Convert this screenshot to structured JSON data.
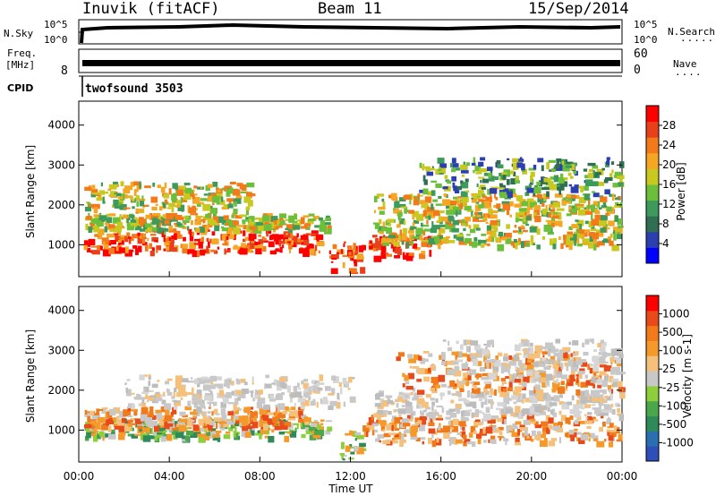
{
  "header": {
    "station": "Inuvik (fitACF)",
    "beam": "Beam 11",
    "date": "15/Sep/2014"
  },
  "top_panels": {
    "nsky_label": "N.Sky",
    "nsky_ticks": [
      "10^5",
      "10^0"
    ],
    "nsearch_label": "N.Search",
    "nsearch_ticks": [
      "10^5",
      "10^0"
    ],
    "freq_label_1": "Freq.",
    "freq_label_2": "[MHz]",
    "freq_tick": "8",
    "nave_label": "Nave",
    "nave_ticks": [
      "60",
      "0"
    ],
    "cpid_label": "CPID",
    "cpid_value": "twofsound 3503"
  },
  "chart_data": [
    {
      "type": "heatmap",
      "panel": "power",
      "ylabel": "Slant Range [km]",
      "yticks": [
        "1000",
        "2000",
        "3000",
        "4000"
      ],
      "ylim": [
        200,
        4600
      ],
      "xlim": [
        0,
        24
      ],
      "colorbar_label": "Power [dB]",
      "colorbar_ticks": [
        "28",
        "24",
        "20",
        "16",
        "12",
        "8",
        "4"
      ],
      "colorbar_colors": [
        "#0000ff",
        "#2b3fb0",
        "#2f6e52",
        "#3d9a5a",
        "#6cbf3a",
        "#c8c820",
        "#f5a623",
        "#f27a1a",
        "#e8401a",
        "#ff0000"
      ],
      "bands": [
        {
          "t0": 0.2,
          "t1": 10.6,
          "r0": 850,
          "r1": 1400,
          "level": "high"
        },
        {
          "t0": 0.2,
          "t1": 11.0,
          "r0": 1400,
          "r1": 1800,
          "level": "mid"
        },
        {
          "t0": 0.2,
          "t1": 7.5,
          "r0": 1900,
          "r1": 2600,
          "level": "mid"
        },
        {
          "t0": 11.0,
          "t1": 12.5,
          "r0": 250,
          "r1": 1100,
          "level": "high"
        },
        {
          "t0": 12.8,
          "t1": 15.5,
          "r0": 700,
          "r1": 1300,
          "level": "high"
        },
        {
          "t0": 13.0,
          "t1": 23.9,
          "r0": 1000,
          "r1": 1700,
          "level": "mid"
        },
        {
          "t0": 13.0,
          "t1": 23.9,
          "r0": 1700,
          "r1": 2300,
          "level": "mid"
        },
        {
          "t0": 15.0,
          "t1": 23.9,
          "r0": 2300,
          "r1": 3200,
          "level": "low"
        }
      ]
    },
    {
      "type": "heatmap",
      "panel": "velocity",
      "ylabel": "Slant Range [km]",
      "yticks": [
        "1000",
        "2000",
        "3000",
        "4000"
      ],
      "ylim": [
        200,
        4600
      ],
      "xlim": [
        0,
        24
      ],
      "xticks": [
        "00:00",
        "04:00",
        "08:00",
        "12:00",
        "16:00",
        "20:00",
        "00:00"
      ],
      "xlabel": "Time UT",
      "colorbar_label": "Velocity [m s-1]",
      "colorbar_ticks": [
        "1000",
        "500",
        "100",
        "25",
        "-25",
        "-100",
        "-500",
        "-1000"
      ],
      "colorbar_colors": [
        "#2e4fb8",
        "#2a6fb0",
        "#2f8a5a",
        "#4aa84a",
        "#8ccf3a",
        "#c8c8c8",
        "#f5c07a",
        "#f59a2a",
        "#f27a1a",
        "#e84a1a",
        "#ff0000"
      ],
      "bands": [
        {
          "t0": 0.2,
          "t1": 11.0,
          "r0": 850,
          "r1": 1300,
          "level": "green"
        },
        {
          "t0": 0.2,
          "t1": 10.0,
          "r0": 1100,
          "r1": 1600,
          "level": "orange"
        },
        {
          "t0": 2.0,
          "t1": 12.0,
          "r0": 1600,
          "r1": 2400,
          "level": "grey"
        },
        {
          "t0": 11.5,
          "t1": 12.5,
          "r0": 200,
          "r1": 1000,
          "level": "green"
        },
        {
          "t0": 12.5,
          "t1": 23.9,
          "r0": 700,
          "r1": 1400,
          "level": "orange"
        },
        {
          "t0": 13.0,
          "t1": 23.9,
          "r0": 1400,
          "r1": 2000,
          "level": "grey"
        },
        {
          "t0": 14.0,
          "t1": 23.9,
          "r0": 2000,
          "r1": 3000,
          "level": "orange"
        },
        {
          "t0": 16.0,
          "t1": 23.9,
          "r0": 2200,
          "r1": 3300,
          "level": "grey"
        }
      ]
    }
  ]
}
